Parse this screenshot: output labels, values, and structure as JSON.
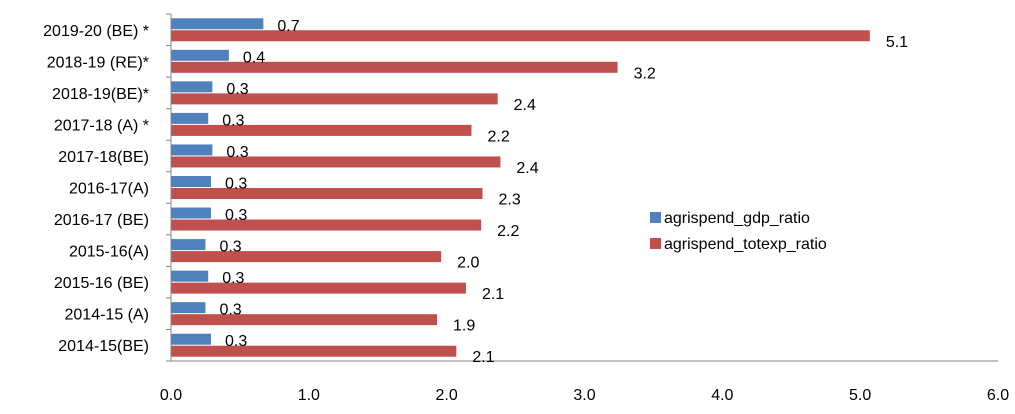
{
  "chart_data": {
    "type": "bar",
    "orientation": "horizontal",
    "categories": [
      "2014-15(BE)",
      "2014-15 (A)",
      "2015-16 (BE)",
      "2015-16(A)",
      "2016-17 (BE)",
      "2016-17(A)",
      "2017-18(BE)",
      "2017-18 (A) *",
      "2018-19(BE)*",
      "2018-19 (RE)*",
      "2019-20 (BE) *"
    ],
    "series": [
      {
        "name": "agrispend_gdp_ratio",
        "color": "#4f81bd",
        "values": [
          0.3,
          0.3,
          0.3,
          0.3,
          0.3,
          0.3,
          0.3,
          0.3,
          0.3,
          0.4,
          0.7
        ],
        "labels": [
          "0.3",
          "0.3",
          "0.3",
          "0.3",
          "0.3",
          "0.3",
          "0.3",
          "0.3",
          "0.3",
          "0.4",
          "0.7"
        ],
        "actual_values": [
          0.29,
          0.25,
          0.27,
          0.25,
          0.29,
          0.29,
          0.3,
          0.27,
          0.3,
          0.42,
          0.67
        ]
      },
      {
        "name": "agrispend_totexp_ratio",
        "color": "#c0504d",
        "values": [
          2.1,
          1.9,
          2.1,
          2.0,
          2.2,
          2.3,
          2.4,
          2.2,
          2.4,
          3.2,
          5.1
        ],
        "labels": [
          "2.1",
          "1.9",
          "2.1",
          "2.0",
          "2.2",
          "2.3",
          "2.4",
          "2.2",
          "2.4",
          "3.2",
          "5.1"
        ],
        "actual_values": [
          2.07,
          1.93,
          2.14,
          1.96,
          2.25,
          2.26,
          2.39,
          2.18,
          2.37,
          3.24,
          5.07
        ]
      }
    ],
    "xlim": [
      0,
      6
    ],
    "xticks": [
      "0.0",
      "1.0",
      "2.0",
      "3.0",
      "4.0",
      "5.0",
      "6.0"
    ],
    "xtick_values": [
      0,
      1,
      2,
      3,
      4,
      5,
      6
    ],
    "title": "",
    "xlabel": "",
    "ylabel": "",
    "grid": false,
    "legend_position": "right-middle",
    "axis_color": "#868686"
  }
}
